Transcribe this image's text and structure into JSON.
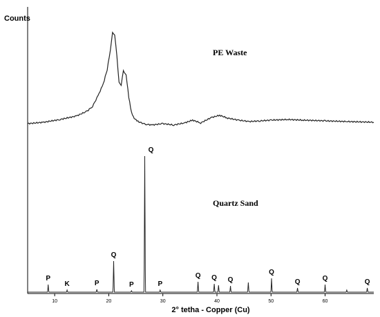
{
  "chart_data": {
    "type": "line",
    "title": "",
    "xlabel": "2° tetha - Copper (Cu)",
    "ylabel": "Counts",
    "xlim": [
      5,
      69
    ],
    "x_ticks": [
      10,
      20,
      30,
      40,
      50,
      60
    ],
    "grid": false,
    "series": [
      {
        "name": "PE Waste",
        "x": [
          5,
          8,
          11,
          14,
          16,
          17,
          18,
          19,
          19.7,
          20.3,
          20.7,
          21.1,
          21.5,
          21.9,
          22.3,
          22.7,
          23.2,
          23.7,
          24.2,
          24.7,
          25.2,
          26,
          27,
          28,
          30,
          32,
          34,
          35.5,
          37,
          39,
          40.5,
          42,
          44,
          46,
          48,
          50,
          53,
          56,
          60,
          64,
          69
        ],
        "y": [
          6,
          8,
          12,
          17,
          24,
          31,
          46,
          64,
          84,
          112,
          138,
          135,
          103,
          66,
          62,
          82,
          77,
          44,
          22,
          14,
          10,
          7,
          5,
          4,
          6,
          4,
          7,
          11,
          7,
          15,
          18,
          14,
          11,
          9,
          10,
          11,
          12,
          11,
          10,
          9,
          8
        ]
      },
      {
        "name": "Quartz Sand",
        "peaks": [
          {
            "x": 8.8,
            "h": 11,
            "label": "P"
          },
          {
            "x": 12.3,
            "h": 3,
            "label": "K"
          },
          {
            "x": 17.8,
            "h": 4,
            "label": "P"
          },
          {
            "x": 20.9,
            "h": 45,
            "label": "Q"
          },
          {
            "x": 24.2,
            "h": 2,
            "label": "P"
          },
          {
            "x": 26.65,
            "h": 197,
            "label": "Q"
          },
          {
            "x": 29.5,
            "h": 3,
            "label": "P"
          },
          {
            "x": 36.5,
            "h": 15,
            "label": "Q"
          },
          {
            "x": 39.5,
            "h": 12,
            "label": "Q"
          },
          {
            "x": 40.3,
            "h": 10,
            "label": ""
          },
          {
            "x": 42.5,
            "h": 9,
            "label": "Q"
          },
          {
            "x": 45.8,
            "h": 14,
            "label": ""
          },
          {
            "x": 50.1,
            "h": 20,
            "label": "Q"
          },
          {
            "x": 54.9,
            "h": 6,
            "label": "Q"
          },
          {
            "x": 60,
            "h": 11,
            "label": "Q"
          },
          {
            "x": 64,
            "h": 3,
            "label": ""
          },
          {
            "x": 67.8,
            "h": 6,
            "label": "Q"
          }
        ]
      }
    ],
    "annotations": [
      "PE Waste",
      "Quartz Sand"
    ]
  }
}
